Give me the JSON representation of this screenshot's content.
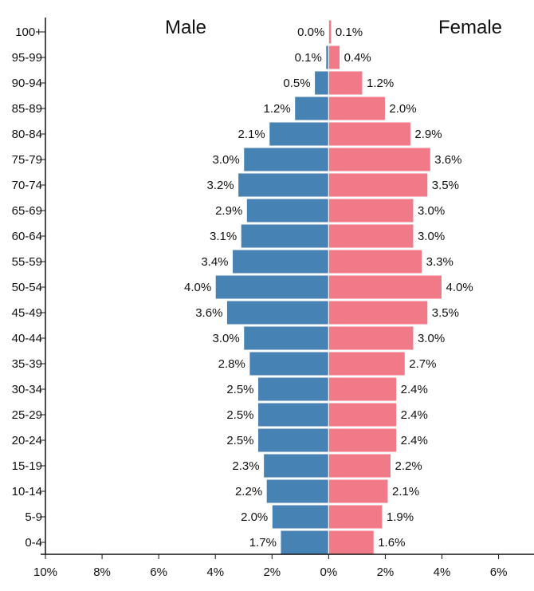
{
  "chart_data": {
    "type": "bar",
    "title_male": "Male",
    "title_female": "Female",
    "categories": [
      "100+",
      "95-99",
      "90-94",
      "85-89",
      "80-84",
      "75-79",
      "70-74",
      "65-69",
      "60-64",
      "55-59",
      "50-54",
      "45-49",
      "40-44",
      "35-39",
      "30-34",
      "25-29",
      "20-24",
      "15-19",
      "10-14",
      "5-9",
      "0-4"
    ],
    "series": [
      {
        "name": "Male",
        "color": "#4682b4",
        "values": [
          0.0,
          0.1,
          0.5,
          1.2,
          2.1,
          3.0,
          3.2,
          2.9,
          3.1,
          3.4,
          4.0,
          3.6,
          3.0,
          2.8,
          2.5,
          2.5,
          2.5,
          2.3,
          2.2,
          2.0,
          1.7
        ]
      },
      {
        "name": "Female",
        "color": "#f07a88",
        "values": [
          0.1,
          0.4,
          1.2,
          2.0,
          2.9,
          3.6,
          3.5,
          3.0,
          3.0,
          3.3,
          4.0,
          3.5,
          3.0,
          2.7,
          2.4,
          2.4,
          2.4,
          2.2,
          2.1,
          1.9,
          1.6
        ]
      }
    ],
    "x_ticks": [
      {
        "v": -10,
        "label": "10%"
      },
      {
        "v": -8,
        "label": "8%"
      },
      {
        "v": -6,
        "label": "6%"
      },
      {
        "v": -4,
        "label": "4%"
      },
      {
        "v": -2,
        "label": "2%"
      },
      {
        "v": 0,
        "label": "0%"
      },
      {
        "v": 2,
        "label": "2%"
      },
      {
        "v": 4,
        "label": "4%"
      },
      {
        "v": 6,
        "label": "6%"
      }
    ],
    "xlim": [
      -10,
      7.25
    ],
    "unit": "%"
  }
}
